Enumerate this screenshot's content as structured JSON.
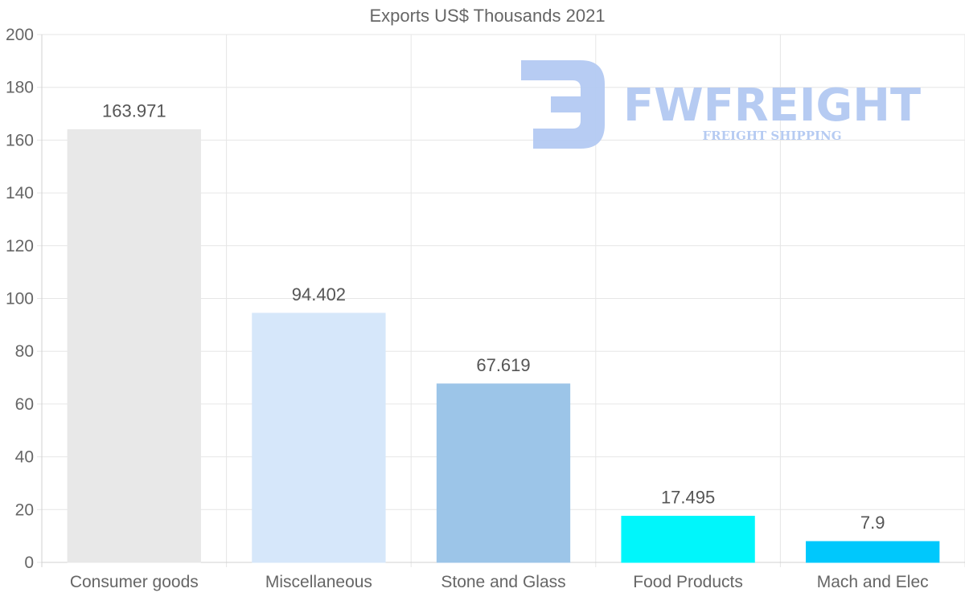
{
  "chart_data": {
    "type": "bar",
    "title": "Exports US$ Thousands 2021",
    "categories": [
      "Consumer goods",
      "Miscellaneous",
      "Stone and Glass",
      "Food Products",
      "Mach and Elec"
    ],
    "values": [
      163.971,
      94.402,
      67.619,
      17.495,
      7.9
    ],
    "value_labels": [
      "163.971",
      "94.402",
      "67.619",
      "17.495",
      "7.9"
    ],
    "colors": [
      "#e8e8e8",
      "#d6e7fa",
      "#9cc5e8",
      "#00f6fb",
      "#00c8fc"
    ],
    "ylim": [
      0,
      200
    ],
    "yticks": [
      0,
      20,
      40,
      60,
      80,
      100,
      120,
      140,
      160,
      180,
      200
    ],
    "xlabel": "",
    "ylabel": "",
    "grid": true,
    "legend": "none"
  },
  "watermark": {
    "brand": "FWFREIGHT",
    "tagline": "FREIGHT SHIPPING",
    "color": "#b3c9f2"
  }
}
